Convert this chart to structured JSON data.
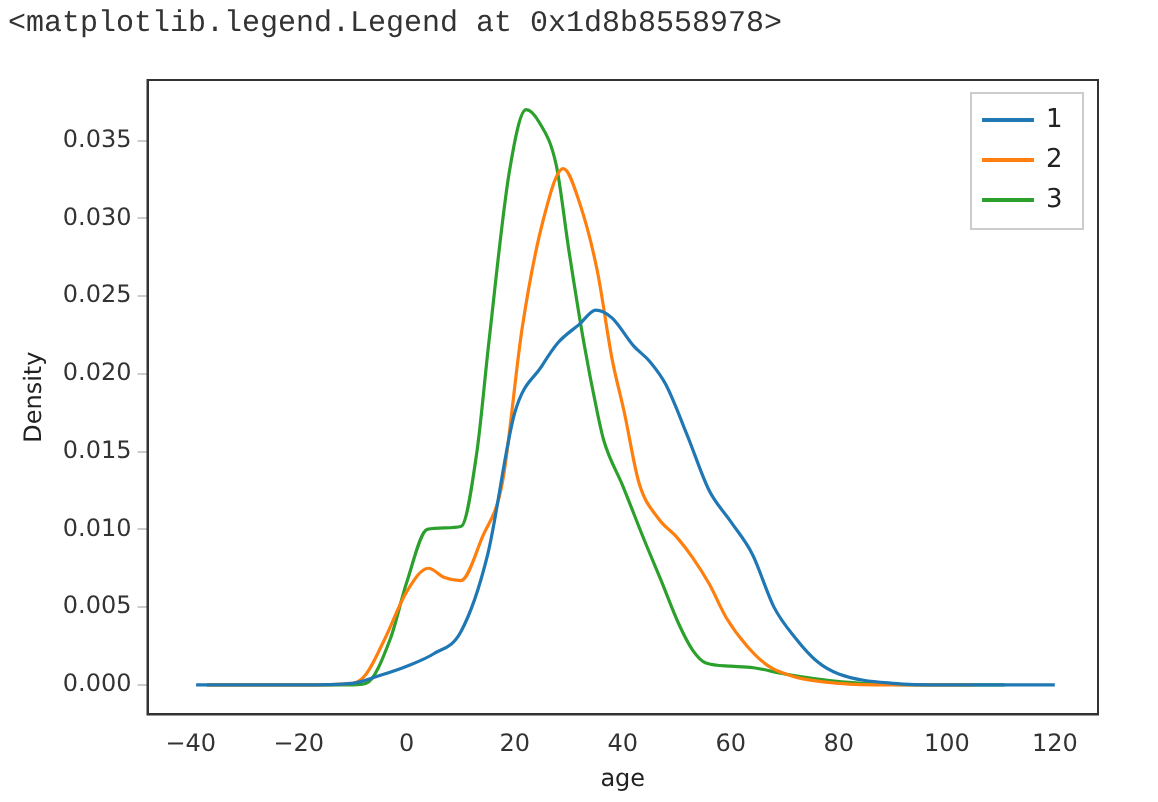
{
  "chart_data": {
    "type": "line",
    "xlabel": "age",
    "ylabel": "Density",
    "annotations": [
      "<matplotlib.legend.Legend at 0x1d8b8558978>"
    ],
    "xlim": [
      -48,
      128
    ],
    "xticks": [
      -40,
      -20,
      0,
      20,
      40,
      60,
      80,
      100,
      120
    ],
    "ylim": [
      -0.0019,
      0.0389
    ],
    "yticks": [
      {
        "value": 0,
        "label": "0.000"
      },
      {
        "value": 0.005,
        "label": "0.005"
      },
      {
        "value": 0.01,
        "label": "0.010"
      },
      {
        "value": 0.015,
        "label": "0.015"
      },
      {
        "value": 0.02,
        "label": "0.020"
      },
      {
        "value": 0.025,
        "label": "0.025"
      },
      {
        "value": 0.03,
        "label": "0.030"
      },
      {
        "value": 0.035,
        "label": "0.035"
      }
    ],
    "grid": false,
    "legend": "top right",
    "marker": "none",
    "line_style": "solid",
    "series": [
      {
        "name": "1",
        "color": "#1f77b4",
        "x": [
          -39,
          -20,
          -10,
          -5,
          0,
          5,
          10,
          15,
          20,
          25,
          28,
          32,
          35,
          38,
          42,
          45,
          48,
          52,
          56,
          60,
          64,
          68,
          72,
          76,
          80,
          90,
          100,
          120
        ],
        "values": [
          0,
          0,
          0.0001,
          0.0006,
          0.0012,
          0.002,
          0.0034,
          0.0084,
          0.0175,
          0.0205,
          0.022,
          0.0232,
          0.0241,
          0.0236,
          0.0218,
          0.0208,
          0.0193,
          0.016,
          0.0125,
          0.0105,
          0.0084,
          0.005,
          0.003,
          0.0015,
          0.0007,
          0.0001,
          0,
          0
        ]
      },
      {
        "name": "2",
        "color": "#ff7f0e",
        "x": [
          -37,
          -20,
          -10,
          -7.5,
          -4,
          0,
          4,
          7,
          10,
          14,
          17.7,
          21.4,
          25.2,
          29,
          32,
          35.3,
          38,
          40.3,
          43,
          46.6,
          50,
          52.9,
          56,
          59.2,
          63,
          67,
          72,
          80,
          90,
          105
        ],
        "values": [
          0,
          0,
          0.0001,
          0.0007,
          0.003,
          0.006,
          0.0075,
          0.0069,
          0.0067,
          0.0095,
          0.013,
          0.023,
          0.0298,
          0.0332,
          0.031,
          0.0266,
          0.021,
          0.0175,
          0.013,
          0.0107,
          0.0095,
          0.0082,
          0.0065,
          0.0043,
          0.0025,
          0.0012,
          0.0005,
          0.0001,
          0,
          0
        ]
      },
      {
        "name": "3",
        "color": "#2ca02c",
        "x": [
          -37,
          -20,
          -10,
          -7.5,
          -3,
          0,
          3.8,
          7,
          10.1,
          13,
          15.2,
          19,
          22.1,
          24.5,
          27.7,
          30,
          32.8,
          35.3,
          36.5,
          40,
          44,
          47,
          50.4,
          53,
          55.4,
          60,
          64.2,
          70,
          80.5,
          95,
          110.7
        ],
        "values": [
          0,
          0,
          0,
          0.0001,
          0.003,
          0.0066,
          0.01,
          0.0101,
          0.0102,
          0.015,
          0.022,
          0.033,
          0.037,
          0.0362,
          0.0334,
          0.028,
          0.022,
          0.0175,
          0.0157,
          0.0128,
          0.0093,
          0.0068,
          0.0039,
          0.0022,
          0.0014,
          0.0012,
          0.0011,
          0.0007,
          0.0002,
          0,
          0
        ]
      }
    ]
  }
}
